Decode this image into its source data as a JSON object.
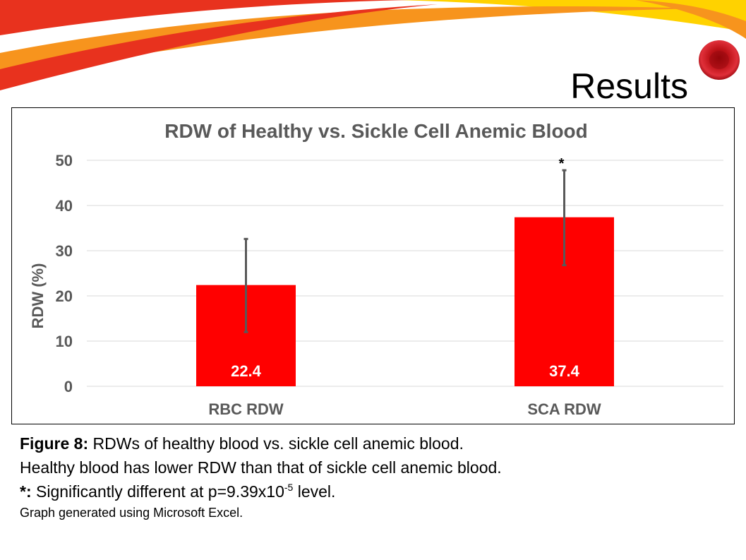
{
  "slide": {
    "title": "Results"
  },
  "caption": {
    "fig_label": "Figure 8:",
    "fig_text": " RDWs of healthy blood vs. sickle cell anemic blood.",
    "line2": "Healthy blood has lower RDW than that of sickle cell anemic blood.",
    "sig_label": "*:",
    "sig_text": " Significantly different at p=9.39x10",
    "sig_exp": "-5",
    "sig_tail": " level.",
    "source": "Graph generated using Microsoft Excel."
  },
  "colors": {
    "bar": "#ff0000",
    "error_bar": "#595959",
    "title_text": "#595959",
    "axis_text": "#595959",
    "gridline": "#d9d9d9",
    "data_label": "#ffffff",
    "swoosh_red": "#e8321e",
    "swoosh_orange": "#f7941d",
    "swoosh_yellow": "#ffd200"
  },
  "icons": {
    "top_decoration": "red-orange-swoosh",
    "corner_image": "red-blood-cell"
  },
  "chart_data": {
    "type": "bar",
    "title": "RDW of Healthy vs. Sickle Cell Anemic Blood",
    "xlabel": "",
    "ylabel": "RDW (%)",
    "categories": [
      "RBC RDW",
      "SCA RDW"
    ],
    "values": [
      22.4,
      37.4
    ],
    "value_labels": [
      "22.4",
      "37.4"
    ],
    "error_high": [
      32.6,
      47.8
    ],
    "error_low": [
      12.0,
      26.8
    ],
    "annotations": [
      "",
      "*"
    ],
    "ylim": [
      0,
      50
    ],
    "yticks": [
      0,
      10,
      20,
      30,
      40,
      50
    ],
    "ytick_labels": [
      "0",
      "10",
      "20",
      "30",
      "40",
      "50"
    ],
    "grid": true,
    "legend": "none"
  }
}
